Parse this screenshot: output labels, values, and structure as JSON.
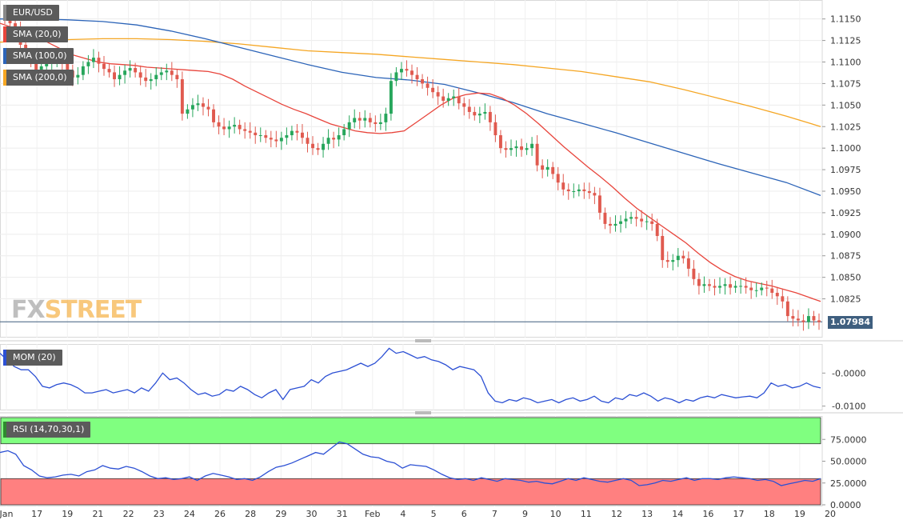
{
  "chart_data": [
    {
      "type": "candlestick",
      "title": "EUR/USD",
      "indicators": [
        {
          "name": "SMA (20,0)",
          "color": "#e8453c"
        },
        {
          "name": "SMA (100,0)",
          "color": "#2c64b8"
        },
        {
          "name": "SMA (200,0)",
          "color": "#f5a623"
        }
      ],
      "ylim": [
        1.078,
        1.1172
      ],
      "y_ticks": [
        "1.1150",
        "1.1125",
        "1.1100",
        "1.1075",
        "1.1050",
        "1.1025",
        "1.1000",
        "1.0975",
        "1.0950",
        "1.0925",
        "1.0900",
        "1.0875",
        "1.0850",
        "1.0825"
      ],
      "x_ticks": [
        "Jan",
        "17",
        "19",
        "21",
        "22",
        "23",
        "24",
        "26",
        "28",
        "29",
        "30",
        "31",
        "Feb",
        "4",
        "5",
        "6",
        "7",
        "9",
        "10",
        "11",
        "12",
        "13",
        "14",
        "16",
        "17",
        "18",
        "19",
        "20"
      ],
      "last_price": "1.07984",
      "series": [
        {
          "name": "Close",
          "values": [
            1.115,
            1.1145,
            1.114,
            1.112,
            1.111,
            1.11,
            1.1088,
            1.1095,
            1.1098,
            1.11,
            1.1102,
            1.1098,
            1.109,
            1.1082,
            1.1085,
            1.1095,
            1.11,
            1.1105,
            1.1098,
            1.1092,
            1.1088,
            1.108,
            1.1085,
            1.109,
            1.1093,
            1.1088,
            1.1082,
            1.1078,
            1.108,
            1.1085,
            1.1088,
            1.109,
            1.1085,
            1.108,
            1.104,
            1.1045,
            1.105,
            1.1052,
            1.1048,
            1.1045,
            1.103,
            1.1025,
            1.1022,
            1.1025,
            1.1027,
            1.1022,
            1.102,
            1.1018,
            1.1015,
            1.1015,
            1.1012,
            1.101,
            1.1008,
            1.1012,
            1.1015,
            1.102,
            1.1018,
            1.1012,
            1.1005,
            1.1,
            1.0998,
            1.1005,
            1.1012,
            1.101,
            1.1015,
            1.1022,
            1.103,
            1.1035,
            1.1032,
            1.1035,
            1.103,
            1.1028,
            1.103,
            1.104,
            1.1078,
            1.1088,
            1.1092,
            1.109,
            1.1085,
            1.108,
            1.1075,
            1.107,
            1.1065,
            1.106,
            1.1055,
            1.1058,
            1.106,
            1.1052,
            1.1048,
            1.1042,
            1.1038,
            1.104,
            1.1042,
            1.103,
            1.1015,
            1.1,
            1.0998,
            1.1,
            1.1002,
            1.0998,
            1.1,
            1.1005,
            1.098,
            1.0975,
            1.0978,
            1.097,
            1.096,
            1.0952,
            1.095,
            1.095,
            1.0952,
            1.095,
            1.0948,
            1.0945,
            1.0925,
            1.0912,
            1.091,
            1.0912,
            1.0915,
            1.0918,
            1.092,
            1.0918,
            1.0915,
            1.0915,
            1.0912,
            1.0898,
            1.087,
            1.0868,
            1.087,
            1.0875,
            1.0872,
            1.086,
            1.0848,
            1.084,
            1.0842,
            1.084,
            1.0838,
            1.084,
            1.0842,
            1.0838,
            1.084,
            1.084,
            1.0838,
            1.0835,
            1.0835,
            1.0838,
            1.0837,
            1.0832,
            1.0828,
            1.0822,
            1.0805,
            1.0802,
            1.08,
            1.0798,
            1.0805,
            1.08,
            1.0798
          ]
        },
        {
          "name": "SMA (20,0)",
          "values": [
            1.1145,
            1.114,
            1.1136,
            1.113,
            1.1122,
            1.1115,
            1.1108,
            1.1104,
            1.11,
            1.1098,
            1.1097,
            1.1096,
            1.1094,
            1.1093,
            1.1092,
            1.1091,
            1.109,
            1.1089,
            1.1086,
            1.108,
            1.1072,
            1.1065,
            1.1058,
            1.1051,
            1.1045,
            1.104,
            1.1034,
            1.1028,
            1.1024,
            1.102,
            1.1018,
            1.1017,
            1.1018,
            1.102,
            1.103,
            1.104,
            1.105,
            1.1058,
            1.1062,
            1.1064,
            1.1063,
            1.1058,
            1.105,
            1.104,
            1.1028,
            1.1015,
            1.1002,
            1.099,
            1.0978,
            1.0967,
            1.0955,
            1.0942,
            1.093,
            1.092,
            1.091,
            1.09,
            1.089,
            1.0878,
            1.0867,
            1.0858,
            1.0851,
            1.0846,
            1.0843,
            1.084,
            1.0836,
            1.0832,
            1.0827,
            1.0822
          ]
        },
        {
          "name": "SMA (100,0)",
          "values": [
            1.115,
            1.115,
            1.1149,
            1.1147,
            1.1143,
            1.1136,
            1.1127,
            1.1117,
            1.1107,
            1.1097,
            1.1088,
            1.1082,
            1.1079,
            1.1074,
            1.1064,
            1.1053,
            1.104,
            1.1029,
            1.1018,
            1.1006,
            1.0994,
            1.0982,
            1.0971,
            1.096,
            1.0945
          ]
        },
        {
          "name": "SMA (200,0)",
          "values": [
            1.1123,
            1.1125,
            1.1126,
            1.1127,
            1.1127,
            1.1126,
            1.1124,
            1.1121,
            1.1117,
            1.1113,
            1.1111,
            1.1109,
            1.1106,
            1.1103,
            1.11,
            1.1097,
            1.1093,
            1.1089,
            1.1083,
            1.1077,
            1.1068,
            1.1058,
            1.1048,
            1.1037,
            1.1025
          ]
        }
      ],
      "grid": true
    },
    {
      "type": "line",
      "title": "MOM (20)",
      "color": "#2c50d4",
      "y_ticks": [
        "-0.0000",
        "-0.0100"
      ],
      "ylim": [
        -0.0113,
        0.0088
      ],
      "values": [
        0.006,
        0.004,
        0.002,
        0.001,
        0.001,
        -0.001,
        -0.004,
        -0.0045,
        -0.0035,
        -0.003,
        -0.0035,
        -0.0045,
        -0.006,
        -0.006,
        -0.0055,
        -0.005,
        -0.006,
        -0.0055,
        -0.005,
        -0.006,
        -0.0045,
        -0.0055,
        -0.003,
        0.0,
        -0.002,
        -0.0015,
        -0.003,
        -0.005,
        -0.0065,
        -0.006,
        -0.007,
        -0.0065,
        -0.005,
        -0.0055,
        -0.004,
        -0.005,
        -0.0065,
        -0.0075,
        -0.006,
        -0.005,
        -0.008,
        -0.005,
        -0.0045,
        -0.004,
        -0.002,
        -0.003,
        -0.001,
        0.0,
        0.0005,
        0.001,
        0.002,
        0.003,
        0.002,
        0.003,
        0.005,
        0.0075,
        0.006,
        0.0065,
        0.0055,
        0.0045,
        0.005,
        0.004,
        0.0035,
        0.0025,
        0.001,
        0.002,
        0.0015,
        0.001,
        -0.001,
        -0.006,
        -0.0085,
        -0.009,
        -0.008,
        -0.0085,
        -0.0075,
        -0.008,
        -0.009,
        -0.0085,
        -0.008,
        -0.009,
        -0.008,
        -0.0075,
        -0.0085,
        -0.008,
        -0.007,
        -0.0085,
        -0.009,
        -0.0075,
        -0.008,
        -0.0065,
        -0.007,
        -0.006,
        -0.007,
        -0.0085,
        -0.0075,
        -0.008,
        -0.009,
        -0.008,
        -0.0085,
        -0.0075,
        -0.007,
        -0.0075,
        -0.0065,
        -0.007,
        -0.0075,
        -0.0072,
        -0.007,
        -0.0075,
        -0.006,
        -0.003,
        -0.004,
        -0.0035,
        -0.0045,
        -0.004,
        -0.003,
        -0.004,
        -0.0045
      ]
    },
    {
      "type": "line",
      "title": "RSI (14,70,30,1)",
      "color": "#2c50d4",
      "y_ticks": [
        "75.0000",
        "50.0000",
        "25.0000",
        "0.0000"
      ],
      "ylim": [
        0,
        100
      ],
      "upper_band": 70,
      "lower_band": 30,
      "values": [
        60,
        62,
        58,
        45,
        40,
        33,
        31,
        32,
        34,
        35,
        33,
        38,
        40,
        45,
        42,
        41,
        44,
        42,
        38,
        33,
        30,
        31,
        29,
        30,
        32,
        28,
        33,
        36,
        34,
        32,
        29,
        30,
        28,
        32,
        38,
        43,
        45,
        48,
        52,
        56,
        60,
        58,
        65,
        72,
        70,
        64,
        58,
        55,
        54,
        50,
        48,
        42,
        46,
        45,
        44,
        40,
        35,
        31,
        29,
        30,
        28,
        31,
        29,
        27,
        30,
        29,
        28,
        26,
        27,
        25,
        24,
        27,
        30,
        28,
        31,
        29,
        27,
        26,
        28,
        30,
        28,
        22,
        23,
        25,
        28,
        27,
        29,
        31,
        28,
        30,
        30,
        29,
        31,
        32,
        31,
        30,
        28,
        29,
        27,
        22,
        24,
        26,
        28,
        27,
        30
      ]
    }
  ]
}
